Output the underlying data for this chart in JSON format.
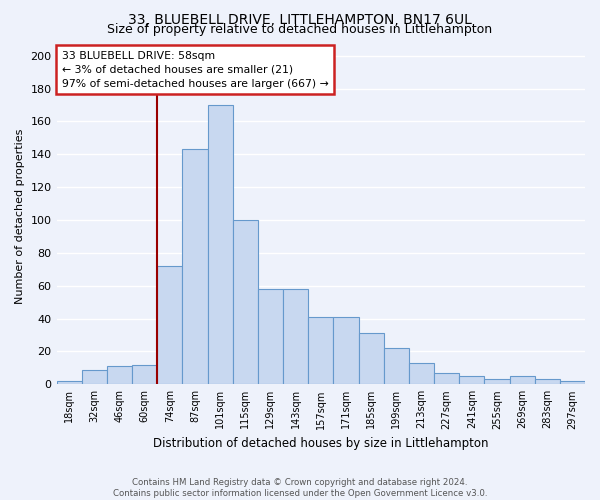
{
  "title": "33, BLUEBELL DRIVE, LITTLEHAMPTON, BN17 6UL",
  "subtitle": "Size of property relative to detached houses in Littlehampton",
  "xlabel": "Distribution of detached houses by size in Littlehampton",
  "ylabel": "Number of detached properties",
  "footnote1": "Contains HM Land Registry data © Crown copyright and database right 2024.",
  "footnote2": "Contains public sector information licensed under the Open Government Licence v3.0.",
  "annotation_title": "33 BLUEBELL DRIVE: 58sqm",
  "annotation_line1": "← 3% of detached houses are smaller (21)",
  "annotation_line2": "97% of semi-detached houses are larger (667) →",
  "bar_labels": [
    "18sqm",
    "32sqm",
    "46sqm",
    "60sqm",
    "74sqm",
    "87sqm",
    "101sqm",
    "115sqm",
    "129sqm",
    "143sqm",
    "157sqm",
    "171sqm",
    "185sqm",
    "199sqm",
    "213sqm",
    "227sqm",
    "241sqm",
    "255sqm",
    "269sqm",
    "283sqm",
    "297sqm"
  ],
  "bar_values": [
    2,
    9,
    11,
    12,
    72,
    143,
    170,
    100,
    58,
    58,
    41,
    41,
    31,
    22,
    13,
    7,
    5,
    3,
    5,
    3,
    2
  ],
  "bar_color": "#c8d8f0",
  "bar_edge_color": "#6699cc",
  "vline_x_index": 3,
  "vline_color": "#990000",
  "ylim": [
    0,
    205
  ],
  "yticks": [
    0,
    20,
    40,
    60,
    80,
    100,
    120,
    140,
    160,
    180,
    200
  ],
  "background_color": "#eef2fb",
  "plot_background": "#eef2fb",
  "title_fontsize": 10,
  "subtitle_fontsize": 9,
  "annotation_box_color": "#ffffff",
  "annotation_box_edge": "#cc2222",
  "grid_color": "#ffffff"
}
